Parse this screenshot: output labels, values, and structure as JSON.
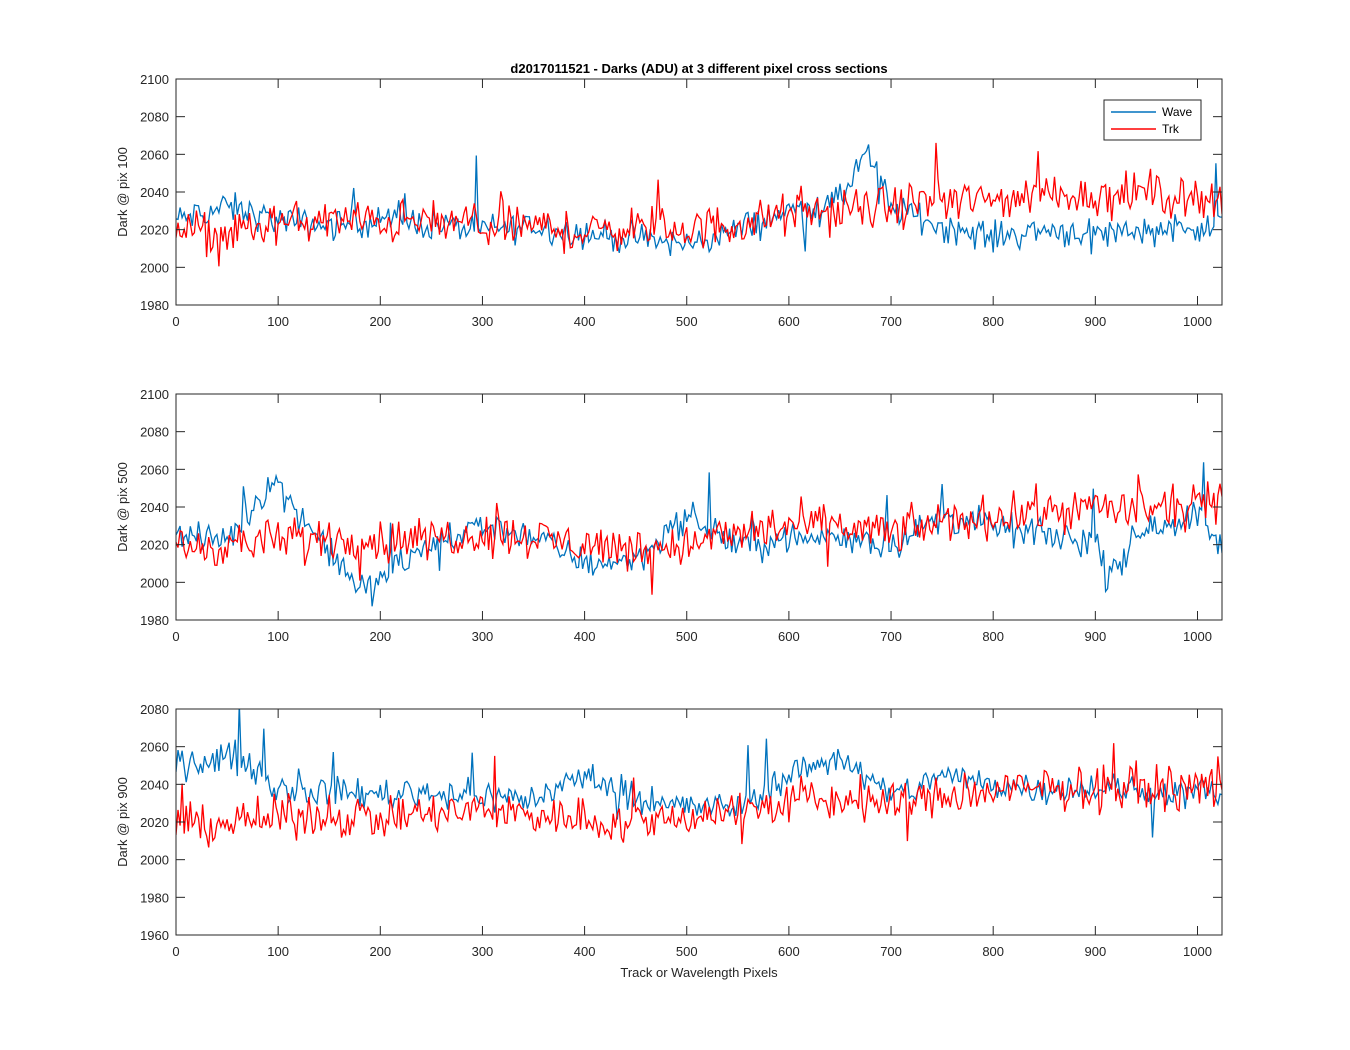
{
  "figure": {
    "title": "d2017011521 - Darks (ADU) at 3 different pixel cross sections",
    "xlabel": "Track or Wavelength Pixels"
  },
  "legend": {
    "placement": "top-right",
    "entries": [
      {
        "name": "Wave",
        "color": "#0072BD"
      },
      {
        "name": "Trk",
        "color": "#FF0000"
      }
    ]
  },
  "chart_data": [
    {
      "type": "line",
      "ylabel": "Dark @ pix 100",
      "xlim": [
        0,
        1024
      ],
      "ylim": [
        1980,
        2100
      ],
      "xticks": [
        "0",
        "100",
        "200",
        "300",
        "400",
        "500",
        "600",
        "700",
        "800",
        "900",
        "1000"
      ],
      "yticks": [
        "1980",
        "2000",
        "2020",
        "2040",
        "2060",
        "2080",
        "2100"
      ],
      "series": [
        {
          "name": "Wave",
          "color": "#0072BD",
          "x": [
            0,
            50,
            100,
            150,
            200,
            250,
            300,
            350,
            400,
            450,
            500,
            550,
            600,
            650,
            675,
            700,
            750,
            800,
            850,
            900,
            950,
            1000,
            1024
          ],
          "y": [
            2025,
            2032,
            2025,
            2022,
            2026,
            2023,
            2020,
            2022,
            2018,
            2015,
            2012,
            2020,
            2030,
            2035,
            2062,
            2032,
            2022,
            2016,
            2020,
            2018,
            2020,
            2022,
            2020
          ]
        },
        {
          "name": "Trk",
          "color": "#FF0000",
          "x": [
            0,
            50,
            100,
            150,
            200,
            250,
            300,
            350,
            400,
            450,
            500,
            550,
            600,
            650,
            700,
            750,
            800,
            850,
            900,
            950,
            1000,
            1024
          ],
          "y": [
            2020,
            2018,
            2023,
            2025,
            2024,
            2024,
            2022,
            2022,
            2018,
            2022,
            2020,
            2023,
            2028,
            2030,
            2032,
            2036,
            2035,
            2040,
            2038,
            2040,
            2036,
            2040
          ]
        }
      ]
    },
    {
      "type": "line",
      "ylabel": "Dark @ pix 500",
      "xlim": [
        0,
        1024
      ],
      "ylim": [
        1980,
        2100
      ],
      "xticks": [
        "0",
        "100",
        "200",
        "300",
        "400",
        "500",
        "600",
        "700",
        "800",
        "900",
        "1000"
      ],
      "yticks": [
        "1980",
        "2000",
        "2020",
        "2040",
        "2060",
        "2080",
        "2100"
      ],
      "series": [
        {
          "name": "Wave",
          "color": "#0072BD",
          "x": [
            0,
            50,
            95,
            130,
            180,
            250,
            300,
            350,
            400,
            450,
            500,
            550,
            600,
            650,
            700,
            750,
            800,
            850,
            900,
            910,
            950,
            1000,
            1024
          ],
          "y": [
            2025,
            2022,
            2055,
            2030,
            1996,
            2020,
            2030,
            2025,
            2010,
            2012,
            2035,
            2020,
            2022,
            2025,
            2020,
            2035,
            2030,
            2025,
            2022,
            2004,
            2030,
            2035,
            2020
          ]
        },
        {
          "name": "Trk",
          "color": "#FF0000",
          "x": [
            0,
            50,
            100,
            150,
            200,
            250,
            300,
            350,
            400,
            450,
            500,
            550,
            600,
            650,
            700,
            750,
            800,
            850,
            900,
            950,
            1000,
            1024
          ],
          "y": [
            2018,
            2020,
            2022,
            2024,
            2022,
            2024,
            2026,
            2024,
            2020,
            2018,
            2020,
            2026,
            2030,
            2030,
            2026,
            2032,
            2035,
            2038,
            2040,
            2038,
            2040,
            2042
          ]
        }
      ]
    },
    {
      "type": "line",
      "ylabel": "Dark @ pix 900",
      "xlim": [
        0,
        1024
      ],
      "ylim": [
        1960,
        2080
      ],
      "xticks": [
        "0",
        "100",
        "200",
        "300",
        "400",
        "500",
        "600",
        "700",
        "800",
        "900",
        "1000"
      ],
      "yticks": [
        "1960",
        "1980",
        "2000",
        "2020",
        "2040",
        "2060",
        "2080"
      ],
      "series": [
        {
          "name": "Wave",
          "color": "#0072BD",
          "x": [
            0,
            30,
            60,
            100,
            150,
            200,
            250,
            300,
            350,
            400,
            450,
            500,
            550,
            600,
            650,
            700,
            750,
            800,
            850,
            900,
            950,
            1000,
            1024
          ],
          "y": [
            2050,
            2052,
            2056,
            2038,
            2036,
            2035,
            2036,
            2034,
            2032,
            2045,
            2033,
            2028,
            2028,
            2045,
            2055,
            2033,
            2045,
            2040,
            2038,
            2038,
            2036,
            2036,
            2035
          ]
        },
        {
          "name": "Trk",
          "color": "#FF0000",
          "x": [
            0,
            50,
            100,
            150,
            200,
            250,
            300,
            350,
            400,
            450,
            500,
            550,
            600,
            650,
            700,
            750,
            800,
            850,
            900,
            950,
            1000,
            1024
          ],
          "y": [
            2018,
            2020,
            2022,
            2024,
            2022,
            2024,
            2026,
            2024,
            2022,
            2018,
            2024,
            2026,
            2030,
            2032,
            2030,
            2033,
            2036,
            2038,
            2038,
            2038,
            2038,
            2040
          ]
        }
      ]
    }
  ]
}
